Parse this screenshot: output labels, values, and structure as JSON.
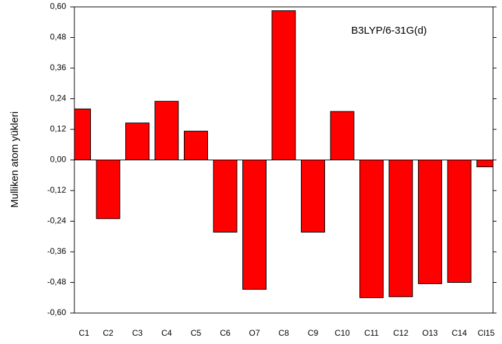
{
  "chart_data": {
    "type": "bar",
    "y_label": "Mulliken atom yükleri",
    "annotation": "B3LYP/6-31G(d)",
    "categories": [
      "C1",
      "C2",
      "C3",
      "C4",
      "C5",
      "C6",
      "O7",
      "C8",
      "C9",
      "C10",
      "C11",
      "C12",
      "O13",
      "C14",
      "Cl15"
    ],
    "values": [
      0.2,
      -0.23,
      0.145,
      0.23,
      0.113,
      -0.283,
      -0.507,
      0.585,
      -0.283,
      0.19,
      -0.54,
      -0.536,
      -0.485,
      -0.48,
      -0.027
    ],
    "color": "#ff0000",
    "ylim": [
      -0.6,
      0.6
    ],
    "yticks": [
      {
        "value": -0.6,
        "label": "-0,60"
      },
      {
        "value": -0.48,
        "label": "-0,48"
      },
      {
        "value": -0.36,
        "label": "-0,36"
      },
      {
        "value": -0.24,
        "label": "-0,24"
      },
      {
        "value": -0.12,
        "label": "-0,12"
      },
      {
        "value": 0,
        "label": "0,00"
      },
      {
        "value": 0.12,
        "label": "0,12"
      },
      {
        "value": 0.24,
        "label": "0,24"
      },
      {
        "value": 0.36,
        "label": "0,36"
      },
      {
        "value": 0.48,
        "label": "0,48"
      },
      {
        "value": 0.6,
        "label": "0,60"
      }
    ]
  }
}
